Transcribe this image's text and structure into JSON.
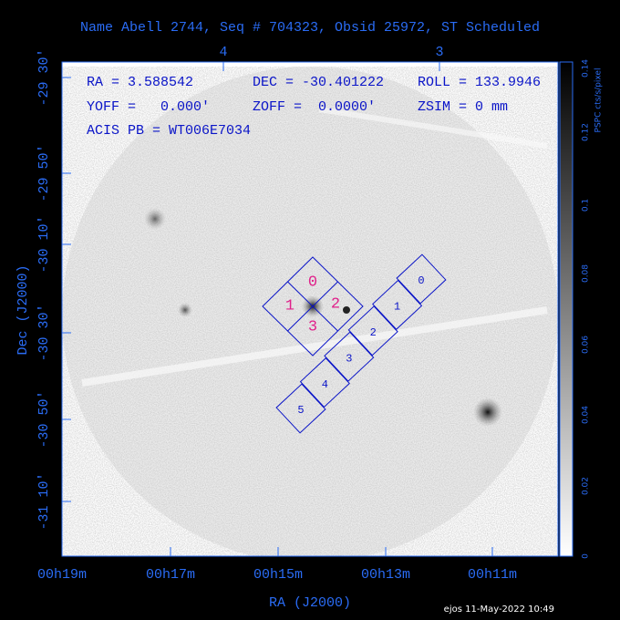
{
  "header": {
    "title": "Name Abell 2744, Seq # 704323, Obsid 25972, ST Scheduled"
  },
  "info": {
    "ra": "RA = 3.588542",
    "dec": "DEC = -30.401222",
    "roll": "ROLL = 133.9946",
    "yoff": "YOFF =   0.000'",
    "zoff": "ZOFF =  0.0000'",
    "zsim": "ZSIM = 0 mm",
    "acis": "ACIS PB = WT006E7034"
  },
  "axes": {
    "x_label": "RA (J2000)",
    "y_label": "Dec (J2000)",
    "x_ticks": [
      "00h19m",
      "00h17m",
      "00h15m",
      "00h13m",
      "00h11m"
    ],
    "y_ticks": [
      "-29 30'",
      "-29 50'",
      "-30 10'",
      "-30 30'",
      "-30 50'",
      "-31 10'"
    ],
    "top_ticks": [
      "4",
      "3"
    ]
  },
  "colorbar": {
    "label": "PSPC cts/s/pixel",
    "ticks": [
      "0",
      "0.02",
      "0.04",
      "0.06",
      "0.08",
      "0.1",
      "0.12",
      "0.14"
    ]
  },
  "chips": {
    "acis_i": [
      "0",
      "1",
      "2",
      "3"
    ],
    "acis_s": [
      "0",
      "1",
      "2",
      "3",
      "4",
      "5"
    ]
  },
  "footer": "ejos 11-May-2022 10:49"
}
